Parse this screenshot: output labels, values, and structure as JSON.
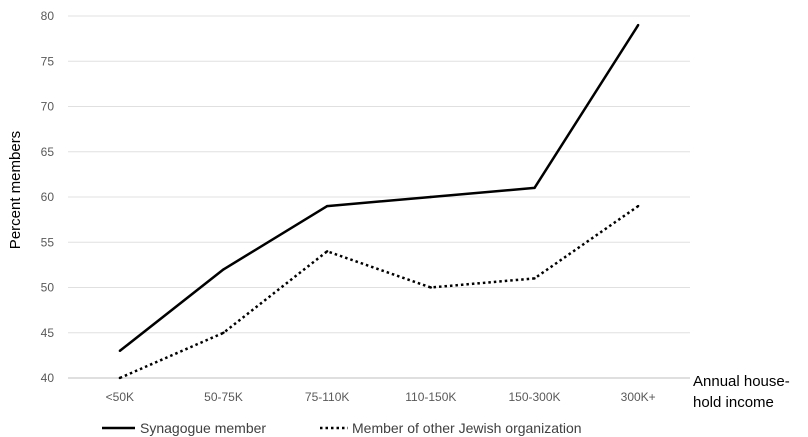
{
  "chart_data": {
    "type": "line",
    "title": "",
    "xlabel_lines": [
      "Annual house-",
      "hold income"
    ],
    "ylabel": "Percent members",
    "categories": [
      "<50K",
      "50-75K",
      "75-110K",
      "110-150K",
      "150-300K",
      "300K+"
    ],
    "y_ticks": [
      "40",
      "45",
      "50",
      "55",
      "60",
      "65",
      "70",
      "75",
      "80"
    ],
    "ylim": [
      40,
      80
    ],
    "grid": "horizontal",
    "legend_position": "bottom",
    "series": [
      {
        "name": "Synagogue member",
        "values": [
          43,
          52,
          59,
          60,
          61,
          79
        ],
        "color": "#000000",
        "style": "solid"
      },
      {
        "name": "Member of other Jewish organization",
        "values": [
          40,
          45,
          54,
          50,
          51,
          59
        ],
        "color": "#000000",
        "style": "dotted"
      }
    ]
  }
}
